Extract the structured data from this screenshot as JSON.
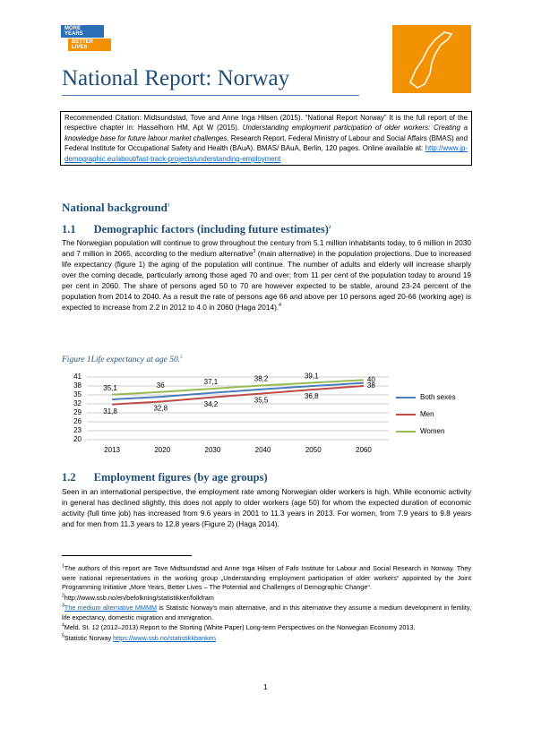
{
  "logo": {
    "line1": "MORE YEARS",
    "line2": "BETTER LIVES"
  },
  "title": "National Report: Norway",
  "citation": {
    "text1": "Recommended Citation: Midtsundstad, Tove and Anne Inga Hilsen (2015). “National Report Norway” It is the full report of the respective chapter in: Hasselhorn HM, Apt W (2015). ",
    "italic": "Understanding employment participation of older workers: Creating a knowledge base for future labour market challenges.",
    "text2": " Research Report. Federal Ministry of Labour and Social Affairs (BMAS) and Federal Institute for Occupational Safety and Health (BAuA). BMAS/ BAuA, Berlin, 120 pages. Online available at: ",
    "link": "http://www.jp-demographic.eu/about/fast-track-projects/understanding-employment"
  },
  "section": {
    "title": "National background",
    "sup": "1"
  },
  "sub1": {
    "number": "1.1",
    "title": "Demographic factors (including future estimates)",
    "sup": "2",
    "text1": "The Norwegian population will continue to grow throughout the century from 5.1 million inhabitants today, to 6 million in 2030 and 7 million in 2065, according to the medium alternative",
    "sup_a": "3",
    "text2": " (main alternative) in the population projections. Due to increased life expectancy (figure 1) the aging of the population will continue. The number of adults and elderly will increase sharply over the coming decade, particularly among those aged 70 and over; from 11 per cent of the population today to around 19 per cent in 2060. The share of persons aged 50 to 70 are however expected to be stable, around 23-24 percent of the population from 2014 to 2040. As a result the rate of persons age 66 and above per 10 persons aged 20-66 (working age) is expected to increase from 2.2 in 2012 to 4.0 in 2060 (Haga 2014).",
    "sup_b": "4"
  },
  "figure_caption": {
    "text": "Figure 1Life expectancy at age 50.",
    "sup": "5"
  },
  "chart_data": {
    "type": "line",
    "categories": [
      "2013",
      "2020",
      "2030",
      "2040",
      "2050",
      "2060"
    ],
    "series": [
      {
        "name": "Both sexes",
        "color": "#4a7ebb",
        "values": [
          33.5,
          34.4,
          35.7,
          36.9,
          38,
          39
        ]
      },
      {
        "name": "Men",
        "color": "#be4b48",
        "values": [
          31.8,
          32.8,
          34.2,
          35.5,
          36.8,
          38
        ],
        "value_labels": [
          "31,8",
          "32,8",
          "34,2",
          "35,5",
          "36,8",
          "38"
        ]
      },
      {
        "name": "Women",
        "color": "#98b954",
        "values": [
          35.1,
          36,
          37.1,
          38.2,
          39.1,
          40
        ],
        "value_labels": [
          "35,1",
          "36",
          "37,1",
          "38,2",
          "39,1",
          "40"
        ]
      }
    ],
    "ylim": [
      20,
      41
    ],
    "yticks": [
      20,
      23,
      26,
      29,
      32,
      35,
      38,
      41
    ],
    "grid": true,
    "legend": "right"
  },
  "sub2": {
    "number": "1.2",
    "title": "Employment figures (by age groups)",
    "text": "Seen in an international perspective, the employment rate among Norwegian older workers is high. While economic activity in general has declined slightly, this does not apply to older workers (age 50) for whom the expected duration of economic activity (full time job) has increased from 9.6 years in 2001 to 11.3 years in 2013. For women, from 7.9 years to 9.8 years and for men from 11.3 years to 12.8 years (Figure 2) (Haga 2014)."
  },
  "footnotes": [
    {
      "mark": "1",
      "text": "The authors of this report are Tove Midtsundstad and Anne Inga Hilsen of Fafo Institute for Labour and Social Research in Norway. They were national representatives in the working group „Understanding employment participation of older workers“ appointed by the Joint Programming Initiative „More Years, Better Lives – The Potential and Challenges of Demographic Change“."
    },
    {
      "mark": "2",
      "text": "http://www.ssb.no/en/befolkning/statistikker/folkfram"
    },
    {
      "mark": "3",
      "link": "The medium alternative MMMM",
      "text": " is Statistic Norway's main alternative, and in this alternative they assume a medium development in fertility, life expectancy, domestic migration and immigration."
    },
    {
      "mark": "4",
      "text": "Meld. St. 12 (2012–2013) Report to the Storting (White Paper) Long-term Perspectives on the Norwegian Economy 2013."
    },
    {
      "mark": "5",
      "text": "Statistic Norway ",
      "link": "https://www.ssb.no/statistikkbanken"
    }
  ],
  "page_number": "1"
}
